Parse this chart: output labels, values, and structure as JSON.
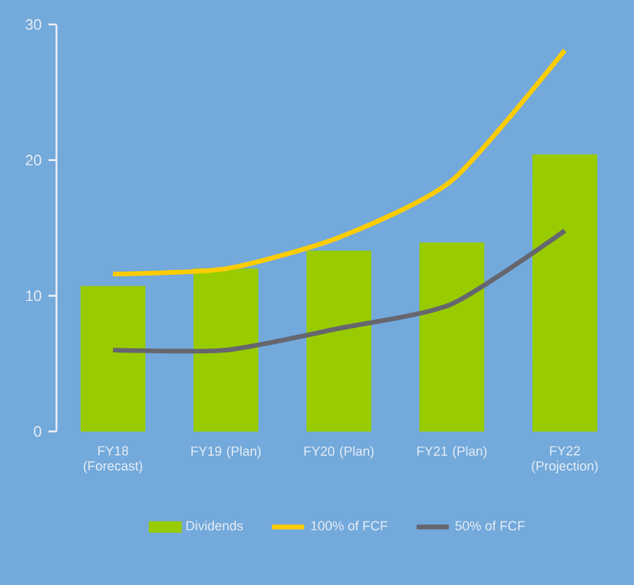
{
  "chart_data": {
    "type": "bar",
    "categories": [
      "FY18 (Forecast)",
      "FY19 (Plan)",
      "FY20 (Plan)",
      "FY21 (Plan)",
      "FY22 (Projection)"
    ],
    "series": [
      {
        "name": "Dividends",
        "color": "#99cc00",
        "values": [
          10.7,
          12.0,
          13.3,
          13.9,
          20.4
        ]
      },
      {
        "name": "100% of FCF",
        "type": "line",
        "color": "#ffcc00",
        "values": [
          11.6,
          12.0,
          14.3,
          18.5,
          28.1
        ]
      },
      {
        "name": "50% of FCF",
        "type": "line",
        "color": "#66666e",
        "values": [
          6.0,
          6.0,
          7.6,
          9.4,
          14.8
        ]
      }
    ],
    "ylim": [
      0,
      30
    ],
    "yticks": [
      0,
      10,
      20,
      30
    ],
    "legend": "bottom"
  }
}
